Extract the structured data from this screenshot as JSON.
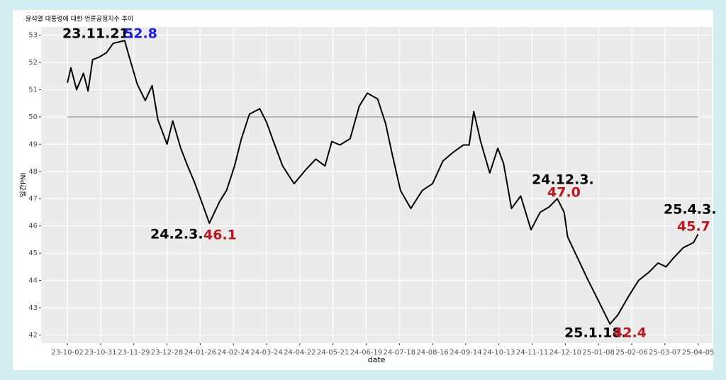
{
  "chart_data": {
    "type": "line",
    "title": "윤석열 대통령에 대한 언론공정지수 추이",
    "x_label": "date",
    "y_label": "일간PNI",
    "xlim": [
      "2023-09-09",
      "2025-04-17"
    ],
    "ylim": [
      41.7,
      53.3
    ],
    "yticks": [
      42,
      43,
      44,
      45,
      46,
      47,
      48,
      49,
      50,
      51,
      52,
      53
    ],
    "xticks": [
      {
        "value": "2023-10-02",
        "label": "23-10-02"
      },
      {
        "value": "2023-10-31",
        "label": "23-10-31"
      },
      {
        "value": "2023-11-29",
        "label": "23-11-29"
      },
      {
        "value": "2023-12-28",
        "label": "23-12-28"
      },
      {
        "value": "2024-01-26",
        "label": "24-01-26"
      },
      {
        "value": "2024-02-24",
        "label": "24-02-24"
      },
      {
        "value": "2024-03-24",
        "label": "24-03-24"
      },
      {
        "value": "2024-04-22",
        "label": "24-04-22"
      },
      {
        "value": "2024-05-21",
        "label": "24-05-21"
      },
      {
        "value": "2024-06-19",
        "label": "24-06-19"
      },
      {
        "value": "2024-07-18",
        "label": "24-07-18"
      },
      {
        "value": "2024-08-16",
        "label": "24-08-16"
      },
      {
        "value": "2024-09-14",
        "label": "24-09-14"
      },
      {
        "value": "2024-10-13",
        "label": "24-10-13"
      },
      {
        "value": "2024-11-11",
        "label": "24-11-11"
      },
      {
        "value": "2024-12-10",
        "label": "24-12-10"
      },
      {
        "value": "2025-01-08",
        "label": "25-01-08"
      },
      {
        "value": "2025-02-06",
        "label": "25-02-06"
      },
      {
        "value": "2025-03-07",
        "label": "25-03-07"
      },
      {
        "value": "2025-04-05",
        "label": "25-04-05"
      }
    ],
    "grid": true,
    "reference_line": 50,
    "x": [
      "2023-10-02",
      "2023-10-05",
      "2023-10-10",
      "2023-10-16",
      "2023-10-20",
      "2023-10-24",
      "2023-10-30",
      "2023-11-05",
      "2023-11-11",
      "2023-11-21",
      "2023-11-25",
      "2023-12-02",
      "2023-12-09",
      "2023-12-15",
      "2023-12-20",
      "2023-12-28",
      "2024-01-02",
      "2024-01-09",
      "2024-01-15",
      "2024-01-21",
      "2024-01-28",
      "2024-02-03",
      "2024-02-12",
      "2024-02-18",
      "2024-02-25",
      "2024-03-02",
      "2024-03-09",
      "2024-03-18",
      "2024-03-24",
      "2024-03-30",
      "2024-04-07",
      "2024-04-17",
      "2024-04-27",
      "2024-05-06",
      "2024-05-14",
      "2024-05-20",
      "2024-05-27",
      "2024-06-05",
      "2024-06-13",
      "2024-06-20",
      "2024-06-29",
      "2024-07-06",
      "2024-07-12",
      "2024-07-19",
      "2024-07-28",
      "2024-08-07",
      "2024-08-16",
      "2024-08-25",
      "2024-09-03",
      "2024-09-12",
      "2024-09-17",
      "2024-09-21",
      "2024-09-27",
      "2024-10-05",
      "2024-10-12",
      "2024-10-17",
      "2024-10-24",
      "2024-11-01",
      "2024-11-10",
      "2024-11-18",
      "2024-11-26",
      "2024-12-03",
      "2024-12-09",
      "2024-12-12",
      "2024-12-21",
      "2024-12-30",
      "2025-01-08",
      "2025-01-18",
      "2025-01-25",
      "2025-02-03",
      "2025-02-12",
      "2025-02-21",
      "2025-03-01",
      "2025-03-08",
      "2025-03-14",
      "2025-03-23",
      "2025-04-01",
      "2025-04-05"
    ],
    "series": [
      {
        "name": "일간PNI",
        "color": "#000000",
        "values": [
          51.25,
          51.8,
          51.0,
          51.6,
          50.95,
          52.1,
          52.2,
          52.35,
          52.7,
          52.8,
          52.2,
          51.2,
          50.6,
          51.15,
          49.9,
          49.0,
          49.85,
          48.85,
          48.2,
          47.6,
          46.8,
          46.1,
          46.9,
          47.3,
          48.2,
          49.2,
          50.1,
          50.3,
          49.8,
          49.1,
          48.2,
          47.55,
          48.05,
          48.45,
          48.2,
          49.1,
          48.97,
          49.2,
          50.4,
          50.87,
          50.66,
          49.75,
          48.58,
          47.3,
          46.64,
          47.3,
          47.55,
          48.38,
          48.7,
          48.97,
          48.97,
          50.2,
          49.1,
          47.94,
          48.85,
          48.3,
          46.64,
          47.1,
          45.86,
          46.5,
          46.7,
          47.0,
          46.5,
          45.6,
          44.8,
          44.0,
          43.25,
          42.4,
          42.74,
          43.4,
          44.0,
          44.3,
          44.64,
          44.5,
          44.8,
          45.2,
          45.39,
          45.7
        ]
      }
    ],
    "annotations": [
      {
        "date": "23.11.21.",
        "value": "52.8",
        "color": "#1a1aff"
      },
      {
        "date": "24.2.3.",
        "value": "46.1",
        "color": "#c0141e"
      },
      {
        "date": "24.12.3.",
        "value": "47.0",
        "color": "#c0141e"
      },
      {
        "date": "25.1.18.",
        "value": "42.4",
        "color": "#c0141e"
      },
      {
        "date": "25.4.3.",
        "value": "45.7",
        "color": "#c0141e"
      }
    ]
  }
}
